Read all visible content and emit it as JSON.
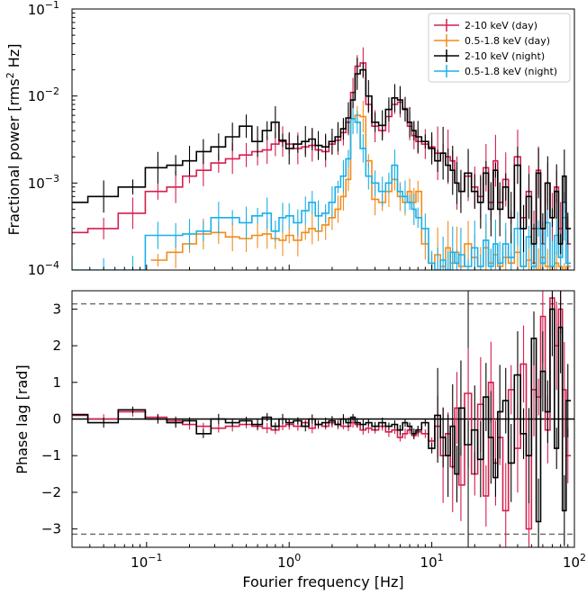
{
  "chart_data": [
    {
      "type": "line",
      "panel": "top",
      "xscale": "log",
      "yscale": "log",
      "xlim": [
        0.03,
        100
      ],
      "ylim": [
        0.0001,
        0.1
      ],
      "ylabel": "Fractional power [rms² Hz]",
      "ylabel_parts": {
        "pre": "Fractional power [rms",
        "sup": "2",
        "post": " Hz]"
      },
      "ytick_labels": [
        {
          "base": "10",
          "exp": "−4",
          "value": 0.0001
        },
        {
          "base": "10",
          "exp": "−3",
          "value": 0.001
        },
        {
          "base": "10",
          "exp": "−2",
          "value": 0.01
        },
        {
          "base": "10",
          "exp": "−1",
          "value": 0.1
        }
      ],
      "legend_position": "top-right",
      "series": [
        {
          "name": "2-10 keV (day)",
          "color": "#d61e4f",
          "x": [
            0.03,
            0.05,
            0.08,
            0.12,
            0.16,
            0.2,
            0.25,
            0.32,
            0.4,
            0.5,
            0.6,
            0.7,
            0.8,
            0.9,
            1.0,
            1.15,
            1.3,
            1.45,
            1.6,
            1.8,
            2.0,
            2.2,
            2.4,
            2.6,
            2.8,
            3.0,
            3.3,
            3.6,
            4.0,
            4.5,
            5.0,
            5.5,
            6.0,
            6.5,
            7.0,
            7.5,
            8.0,
            9.0,
            10,
            11,
            12,
            13,
            14,
            15,
            16,
            18,
            20,
            22,
            24,
            26,
            28,
            30,
            33,
            36,
            40,
            44,
            48,
            52,
            56,
            60,
            65,
            70,
            75,
            80,
            85,
            90
          ],
          "y": [
            0.00027,
            0.0003,
            0.00045,
            0.0008,
            0.0009,
            0.0012,
            0.0014,
            0.0017,
            0.0019,
            0.0021,
            0.0023,
            0.0024,
            0.0028,
            0.003,
            0.0028,
            0.0025,
            0.0026,
            0.0027,
            0.0024,
            0.0023,
            0.0028,
            0.0031,
            0.0038,
            0.005,
            0.011,
            0.022,
            0.024,
            0.008,
            0.0045,
            0.004,
            0.0058,
            0.008,
            0.0085,
            0.0072,
            0.0045,
            0.0035,
            0.003,
            0.0028,
            0.0026,
            0.0022,
            0.0022,
            0.002,
            0.0018,
            0.001,
            0.0008,
            0.0012,
            0.0009,
            0.0007,
            0.0015,
            0.0006,
            0.0018,
            0.0006,
            0.0011,
            0.0004,
            0.002,
            0.0004,
            0.0008,
            0.0003,
            0.0014,
            0.0002,
            0.001,
            0.0004,
            0.0009,
            0.0003,
            0.0006,
            0.0002
          ]
        },
        {
          "name": "0.5-1.8 keV (day)",
          "color": "#f08c1e",
          "x": [
            0.12,
            0.16,
            0.2,
            0.25,
            0.32,
            0.4,
            0.5,
            0.6,
            0.7,
            0.8,
            0.9,
            1.0,
            1.15,
            1.3,
            1.45,
            1.6,
            1.8,
            2.0,
            2.2,
            2.4,
            2.6,
            2.8,
            3.0,
            3.3,
            3.6,
            4.0,
            4.5,
            5.0,
            5.5,
            6.0,
            6.5,
            7.0,
            7.5,
            8.0,
            9.0,
            10,
            11,
            12,
            13,
            14,
            15,
            16,
            18,
            20,
            22,
            24,
            26,
            28,
            30,
            33,
            36,
            40,
            44,
            48,
            52,
            56,
            60,
            65,
            70,
            75,
            80,
            85,
            90
          ],
          "y": [
            0.00013,
            0.00016,
            0.0002,
            0.00026,
            0.00027,
            0.00024,
            0.00023,
            0.00025,
            0.00026,
            0.00023,
            0.00022,
            0.00025,
            0.00022,
            0.00027,
            0.0003,
            0.00028,
            0.00033,
            0.0004,
            0.0005,
            0.0007,
            0.0011,
            0.0055,
            0.006,
            0.0058,
            0.0018,
            0.00065,
            0.0006,
            0.0008,
            0.0011,
            0.0007,
            0.0006,
            0.0008,
            0.0006,
            0.0008,
            0.0002,
            0.00012,
            0.00015,
            0.00011,
            0.00018,
            0.00012,
            0.00016,
            0.00011,
            0.0002,
            0.00014,
            0.00011,
            0.00018,
            0.00012,
            0.00015,
            0.00011,
            0.00014,
            0.00012,
            0.00016,
            0.00011,
            0.00013,
            0.00012,
            0.0001,
            0.00014,
            0.00011,
            0.0001,
            0.00012,
            0.00011,
            0.0001,
            0.00011
          ]
        },
        {
          "name": "2-10 keV (night)",
          "color": "#000000",
          "x": [
            0.03,
            0.05,
            0.08,
            0.12,
            0.16,
            0.2,
            0.25,
            0.32,
            0.4,
            0.5,
            0.6,
            0.7,
            0.8,
            0.9,
            1.0,
            1.15,
            1.3,
            1.45,
            1.6,
            1.8,
            2.0,
            2.2,
            2.4,
            2.6,
            2.8,
            3.0,
            3.3,
            3.6,
            4.0,
            4.5,
            5.0,
            5.5,
            6.0,
            6.5,
            7.0,
            7.5,
            8.0,
            9.0,
            10,
            11,
            12,
            13,
            14,
            15,
            16,
            18,
            20,
            22,
            24,
            26,
            28,
            30,
            33,
            36,
            40,
            44,
            48,
            52,
            56,
            60,
            65,
            70,
            75,
            80,
            85,
            90
          ],
          "y": [
            0.0006,
            0.0007,
            0.0009,
            0.0015,
            0.0016,
            0.0018,
            0.0023,
            0.0026,
            0.0034,
            0.0045,
            0.003,
            0.004,
            0.005,
            0.0031,
            0.0025,
            0.0028,
            0.003,
            0.0032,
            0.0027,
            0.0026,
            0.003,
            0.0034,
            0.0042,
            0.0056,
            0.009,
            0.018,
            0.02,
            0.01,
            0.005,
            0.0046,
            0.007,
            0.0095,
            0.009,
            0.007,
            0.005,
            0.004,
            0.0034,
            0.003,
            0.0025,
            0.0018,
            0.0022,
            0.0016,
            0.0014,
            0.001,
            0.0008,
            0.0013,
            0.0008,
            0.0006,
            0.0013,
            0.0005,
            0.0014,
            0.0005,
            0.0009,
            0.0004,
            0.0016,
            0.0003,
            0.0007,
            0.0002,
            0.0013,
            0.0003,
            0.001,
            0.0004,
            0.0008,
            0.0002,
            0.0012,
            0.0003
          ]
        },
        {
          "name": "0.5-1.8 keV (night)",
          "color": "#1ab0e8",
          "x": [
            0.03,
            0.05,
            0.08,
            0.12,
            0.16,
            0.2,
            0.25,
            0.32,
            0.4,
            0.5,
            0.6,
            0.7,
            0.8,
            0.9,
            1.0,
            1.15,
            1.3,
            1.45,
            1.6,
            1.8,
            2.0,
            2.2,
            2.4,
            2.6,
            2.8,
            3.0,
            3.3,
            3.6,
            4.0,
            4.5,
            5.0,
            5.5,
            6.0,
            6.5,
            7.0,
            7.5,
            8.0,
            9.0,
            10,
            11,
            12,
            13,
            14,
            15,
            16,
            18,
            20,
            22,
            24,
            26,
            28,
            30,
            33,
            36,
            40,
            44,
            48,
            52,
            56,
            60,
            65,
            70,
            75,
            80,
            85,
            90
          ],
          "y": [
            0.0001,
            0.0001,
            0.0001,
            0.00025,
            0.00025,
            0.00026,
            0.00028,
            0.0004,
            0.0004,
            0.00035,
            0.00042,
            0.00045,
            0.00028,
            0.0004,
            0.00042,
            0.00035,
            0.00048,
            0.0006,
            0.00042,
            0.00045,
            0.0006,
            0.0009,
            0.0012,
            0.0019,
            0.0055,
            0.005,
            0.0025,
            0.0012,
            0.001,
            0.0008,
            0.001,
            0.0016,
            0.0008,
            0.0007,
            0.0006,
            0.0005,
            0.0004,
            0.0003,
            0.00012,
            0.0001,
            0.00013,
            0.0001,
            0.00016,
            0.00012,
            0.00015,
            0.00011,
            0.00018,
            0.00011,
            0.00022,
            0.00011,
            0.0002,
            0.00012,
            0.0002,
            0.00014,
            0.0003,
            0.00011,
            0.00024,
            0.00011,
            0.0003,
            0.00012,
            0.00035,
            0.00011,
            0.00025,
            0.00014,
            0.0004,
            0.00012
          ]
        }
      ]
    },
    {
      "type": "line",
      "panel": "bottom",
      "xscale": "log",
      "xlim": [
        0.03,
        100
      ],
      "ylim": [
        -3.5,
        3.5
      ],
      "xlabel": "Fourier frequency [Hz]",
      "ylabel": "Phase lag [rad]",
      "yticks": [
        -3,
        -2,
        -1,
        0,
        1,
        2,
        3
      ],
      "ytick_labels": [
        "−3",
        "−2",
        "−1",
        "0",
        "1",
        "2",
        "3"
      ],
      "xtick_labels": [
        {
          "base": "10",
          "exp": "−1",
          "value": 0.1
        },
        {
          "base": "10",
          "exp": "0",
          "value": 1
        },
        {
          "base": "10",
          "exp": "1",
          "value": 10
        },
        {
          "base": "10",
          "exp": "2",
          "value": 100
        }
      ],
      "reference_lines": [
        3.14159,
        -3.14159
      ],
      "zero_line": 0,
      "vertical_markers": [
        18
      ],
      "series": [
        {
          "name": "2-10 keV (day)",
          "color": "#d61e4f",
          "x": [
            0.03,
            0.05,
            0.08,
            0.12,
            0.16,
            0.2,
            0.25,
            0.32,
            0.4,
            0.5,
            0.6,
            0.7,
            0.8,
            0.9,
            1.0,
            1.15,
            1.3,
            1.45,
            1.6,
            1.8,
            2.0,
            2.2,
            2.4,
            2.6,
            2.8,
            3.0,
            3.3,
            3.6,
            4.0,
            4.5,
            5.0,
            5.5,
            6.0,
            6.5,
            7.0,
            7.5,
            8.0,
            9.0,
            10,
            11,
            12,
            13,
            14,
            15,
            16,
            18,
            20,
            22,
            24,
            26,
            28,
            30,
            33,
            36,
            40,
            44,
            48,
            52,
            56,
            60,
            65,
            70,
            75,
            80,
            85,
            90
          ],
          "y": [
            0.1,
            0.0,
            0.2,
            0.05,
            -0.05,
            -0.15,
            -0.2,
            -0.25,
            -0.2,
            -0.15,
            -0.2,
            -0.25,
            -0.3,
            -0.2,
            -0.15,
            -0.2,
            -0.1,
            -0.25,
            -0.15,
            -0.2,
            -0.1,
            -0.15,
            -0.2,
            -0.2,
            -0.1,
            -0.15,
            -0.3,
            -0.25,
            -0.3,
            -0.2,
            -0.35,
            -0.3,
            -0.5,
            -0.4,
            -0.3,
            -0.45,
            -0.35,
            -0.4,
            -0.6,
            -0.2,
            -1.0,
            -0.4,
            -1.3,
            0.3,
            -1.8,
            0.7,
            -1.5,
            0.4,
            -2.1,
            1.0,
            -1.2,
            -0.5,
            -2.5,
            0.8,
            -0.8,
            1.5,
            -3.0,
            0.8,
            0.6,
            2.8,
            -0.3,
            3.3,
            2.0,
            3.0,
            0.8,
            -1.0
          ]
        },
        {
          "name": "2-10 keV (night)",
          "color": "#000000",
          "x": [
            0.03,
            0.05,
            0.08,
            0.12,
            0.16,
            0.2,
            0.25,
            0.32,
            0.4,
            0.5,
            0.6,
            0.7,
            0.8,
            0.9,
            1.0,
            1.15,
            1.3,
            1.45,
            1.6,
            1.8,
            2.0,
            2.2,
            2.4,
            2.6,
            2.8,
            3.0,
            3.3,
            3.6,
            4.0,
            4.5,
            5.0,
            5.5,
            6.0,
            6.5,
            7.0,
            7.5,
            8.0,
            9.0,
            10,
            11,
            12,
            13,
            14,
            15,
            16,
            18,
            20,
            22,
            24,
            26,
            28,
            30,
            33,
            36,
            40,
            44,
            48,
            52,
            56,
            60,
            65,
            70,
            75,
            80,
            85,
            90
          ],
          "y": [
            0.12,
            -0.1,
            0.25,
            0.0,
            -0.1,
            -0.05,
            -0.4,
            0.0,
            -0.1,
            -0.05,
            -0.15,
            0.05,
            -0.2,
            0.0,
            -0.1,
            -0.05,
            -0.2,
            0.0,
            -0.15,
            -0.1,
            -0.05,
            -0.15,
            0.0,
            -0.1,
            0.05,
            -0.1,
            -0.15,
            -0.1,
            -0.2,
            -0.1,
            -0.2,
            -0.15,
            -0.3,
            -0.1,
            -0.2,
            -0.4,
            -0.3,
            -0.1,
            -0.8,
            0.1,
            -0.5,
            -1.0,
            -0.2,
            -1.5,
            0.3,
            -0.7,
            -0.3,
            -1.1,
            0.6,
            -0.5,
            -1.6,
            0.2,
            0.5,
            -1.2,
            1.2,
            -0.4,
            -1.0,
            2.2,
            -2.8,
            1.3,
            0.2,
            3.0,
            -0.8,
            2.5,
            -2.5,
            0.5
          ]
        }
      ]
    }
  ]
}
